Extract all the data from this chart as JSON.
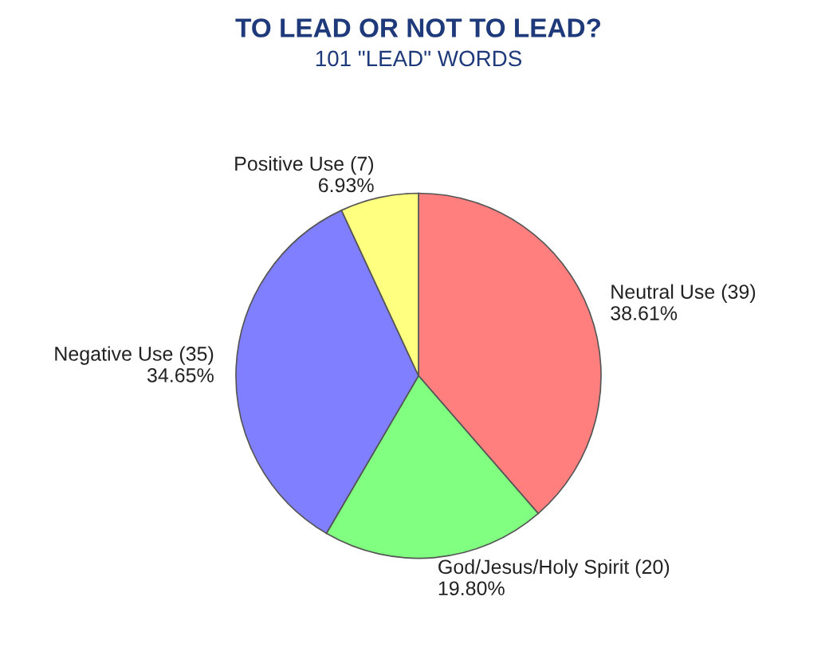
{
  "chart_data": {
    "type": "pie",
    "title": "TO LEAD OR NOT TO LEAD?",
    "subtitle": "101 \"LEAD\" WORDS",
    "categories": [
      "Neutral Use (39)",
      "God/Jesus/Holy Spirit (20)",
      "Negative Use (35)",
      "Positive Use (7)"
    ],
    "values": [
      38.61,
      19.8,
      34.65,
      6.93
    ],
    "value_labels": [
      "38.61%",
      "19.80%",
      "34.65%",
      "6.93%"
    ],
    "colors": [
      "#ff7f7f",
      "#80ff80",
      "#7f7fff",
      "#ffff80"
    ]
  }
}
